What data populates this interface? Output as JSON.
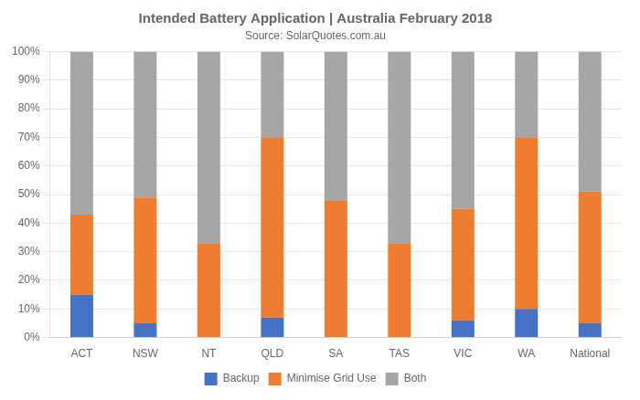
{
  "chart_data": {
    "type": "bar",
    "title": "Intended Battery Application | Australia February 2018",
    "subtitle": "Source: SolarQuotes.com.au",
    "categories": [
      "ACT",
      "NSW",
      "NT",
      "QLD",
      "SA",
      "TAS",
      "VIC",
      "WA",
      "National"
    ],
    "series": [
      {
        "name": "Backup",
        "color": "#4472C4",
        "values": [
          15,
          5,
          0,
          7,
          0,
          0,
          6,
          10,
          5
        ]
      },
      {
        "name": "Minimise Grid Use",
        "color": "#ED7D31",
        "values": [
          28,
          44,
          33,
          63,
          48,
          33,
          39,
          60,
          46
        ]
      },
      {
        "name": "Both",
        "color": "#A6A6A6",
        "values": [
          57,
          51,
          67,
          30,
          52,
          67,
          55,
          30,
          49
        ]
      }
    ],
    "stacked": true,
    "ylim": [
      0,
      100
    ],
    "yticks": [
      {
        "value": 0,
        "label": "0%"
      },
      {
        "value": 10,
        "label": "10%"
      },
      {
        "value": 20,
        "label": "20%"
      },
      {
        "value": 30,
        "label": "30%"
      },
      {
        "value": 40,
        "label": "40%"
      },
      {
        "value": 50,
        "label": "50%"
      },
      {
        "value": 60,
        "label": "60%"
      },
      {
        "value": 70,
        "label": "70%"
      },
      {
        "value": 80,
        "label": "80%"
      },
      {
        "value": 90,
        "label": "90%"
      },
      {
        "value": 100,
        "label": "100%"
      }
    ],
    "grid": true,
    "legend": "bottom"
  }
}
